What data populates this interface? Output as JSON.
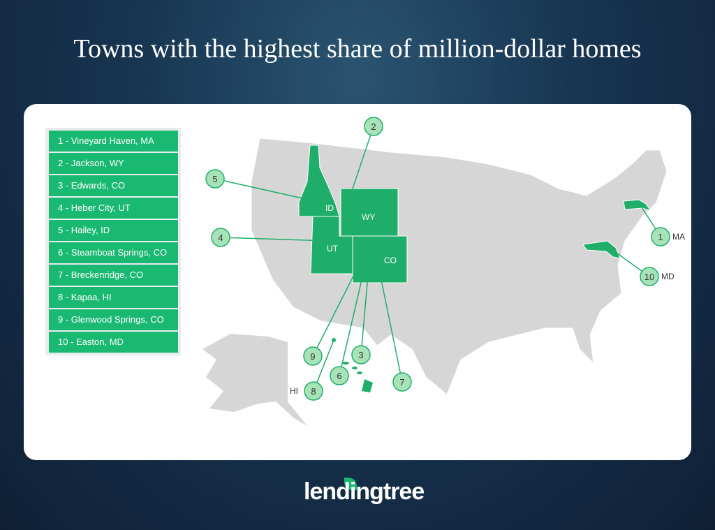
{
  "title": "Towns with the highest share of million-dollar homes",
  "legend": [
    "1 - Vineyard Haven, MA",
    "2 - Jackson, WY",
    "3 - Edwards, CO",
    "4 - Heber City, UT",
    "5 - Hailey, ID",
    "6 - Steamboat Springs, CO",
    "7 - Breckenridge, CO",
    "8 - Kapaa, HI",
    "9 - Glenwood Springs, CO",
    "10 - Easton, MD"
  ],
  "map": {
    "state_labels": {
      "ID": "ID",
      "WY": "WY",
      "UT": "UT",
      "CO": "CO"
    },
    "outside_labels": {
      "MA": "MA",
      "MD": "MD",
      "HI": "HI"
    },
    "markers": [
      "1",
      "2",
      "3",
      "4",
      "5",
      "6",
      "7",
      "8",
      "9",
      "10"
    ],
    "colors": {
      "highlight": "#1fae6a",
      "marker": "#a8e3b8",
      "land": "#d6d6d6",
      "legend": "#19b971"
    }
  },
  "logo": "lendingtree"
}
